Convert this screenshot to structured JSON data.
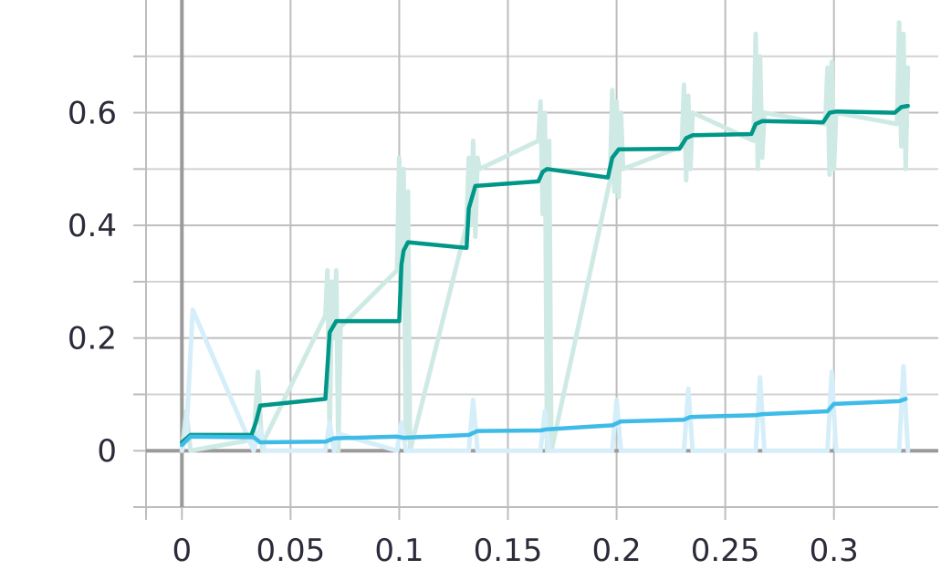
{
  "chart_data": {
    "type": "line",
    "title": "",
    "xlabel": "",
    "ylabel": "",
    "xlim": [
      -0.0165,
      0.348
    ],
    "ylim": [
      -0.1,
      0.8
    ],
    "x_ticks": [
      0,
      0.05,
      0.1,
      0.15,
      0.2,
      0.25,
      0.3
    ],
    "x_tick_labels": [
      "0",
      "0.05",
      "0.1",
      "0.15",
      "0.2",
      "0.25",
      "0.3"
    ],
    "y_ticks": [
      0,
      0.2,
      0.4,
      0.6
    ],
    "y_tick_labels": [
      "0",
      "0.2",
      "0.4",
      "0.6"
    ],
    "grid": true,
    "legend": "none",
    "colors": {
      "teal": "#009688",
      "teal_raw": "#cfeae5",
      "blue": "#3fbbe8",
      "blue_raw": "#d5eef9"
    },
    "series": [
      {
        "kind": "smoothed",
        "color": "#009688",
        "x": [
          0,
          0.004,
          0.032,
          0.034,
          0.036,
          0.066,
          0.068,
          0.071,
          0.1,
          0.101,
          0.102,
          0.104,
          0.131,
          0.132,
          0.135,
          0.164,
          0.166,
          0.168,
          0.196,
          0.198,
          0.201,
          0.229,
          0.232,
          0.235,
          0.262,
          0.264,
          0.267,
          0.295,
          0.298,
          0.301,
          0.328,
          0.331,
          0.334
        ],
        "y": [
          0.015,
          0.028,
          0.028,
          0.05,
          0.08,
          0.092,
          0.21,
          0.23,
          0.23,
          0.33,
          0.355,
          0.37,
          0.36,
          0.43,
          0.47,
          0.478,
          0.495,
          0.5,
          0.485,
          0.52,
          0.535,
          0.536,
          0.555,
          0.56,
          0.562,
          0.58,
          0.585,
          0.583,
          0.6,
          0.602,
          0.6,
          0.61,
          0.612
        ]
      },
      {
        "kind": "smoothed",
        "color": "#3fbbe8",
        "x": [
          0,
          0.004,
          0.033,
          0.036,
          0.066,
          0.07,
          0.099,
          0.102,
          0.132,
          0.136,
          0.165,
          0.168,
          0.198,
          0.202,
          0.231,
          0.234,
          0.264,
          0.267,
          0.297,
          0.3,
          0.33,
          0.333
        ],
        "y": [
          0.01,
          0.025,
          0.024,
          0.015,
          0.016,
          0.022,
          0.025,
          0.023,
          0.028,
          0.035,
          0.036,
          0.038,
          0.045,
          0.052,
          0.055,
          0.06,
          0.063,
          0.065,
          0.07,
          0.083,
          0.088,
          0.092
        ]
      },
      {
        "kind": "raw",
        "color": "#cfeae5",
        "x": [
          0,
          0.002,
          0.004,
          0.033,
          0.035,
          0.037,
          0.038,
          0.066,
          0.067,
          0.068,
          0.069,
          0.07,
          0.071,
          0.072,
          0.073,
          0.099,
          0.1,
          0.101,
          0.102,
          0.103,
          0.104,
          0.105,
          0.131,
          0.132,
          0.133,
          0.134,
          0.135,
          0.136,
          0.137,
          0.164,
          0.165,
          0.166,
          0.167,
          0.168,
          0.169,
          0.17,
          0.197,
          0.198,
          0.199,
          0.2,
          0.201,
          0.202,
          0.203,
          0.23,
          0.231,
          0.232,
          0.233,
          0.234,
          0.235,
          0.263,
          0.264,
          0.265,
          0.266,
          0.267,
          0.268,
          0.296,
          0.297,
          0.298,
          0.299,
          0.3,
          0.301,
          0.329,
          0.33,
          0.331,
          0.332,
          0.333,
          0.334
        ],
        "y": [
          0.0,
          0.07,
          0.0,
          0.02,
          0.14,
          0.0,
          0.02,
          0.24,
          0.32,
          0.02,
          0.3,
          0.2,
          0.32,
          0.0,
          0.22,
          0.32,
          0.52,
          0.28,
          0.5,
          0.02,
          0.46,
          0.0,
          0.4,
          0.52,
          0.4,
          0.55,
          0.38,
          0.52,
          0.5,
          0.55,
          0.62,
          0.42,
          0.6,
          0.0,
          0.55,
          0.0,
          0.48,
          0.64,
          0.46,
          0.62,
          0.45,
          0.6,
          0.5,
          0.54,
          0.65,
          0.48,
          0.63,
          0.5,
          0.6,
          0.55,
          0.74,
          0.5,
          0.7,
          0.52,
          0.6,
          0.58,
          0.68,
          0.49,
          0.69,
          0.5,
          0.6,
          0.58,
          0.76,
          0.54,
          0.74,
          0.5,
          0.68
        ]
      },
      {
        "kind": "raw",
        "color": "#d5eef9",
        "x": [
          0,
          0.002,
          0.005,
          0.033,
          0.036,
          0.038,
          0.066,
          0.068,
          0.07,
          0.072,
          0.099,
          0.101,
          0.103,
          0.132,
          0.134,
          0.136,
          0.165,
          0.167,
          0.169,
          0.198,
          0.2,
          0.202,
          0.231,
          0.233,
          0.235,
          0.264,
          0.266,
          0.268,
          0.297,
          0.299,
          0.301,
          0.33,
          0.332,
          0.334
        ],
        "y": [
          0.0,
          0.03,
          0.25,
          0.0,
          0.04,
          0.0,
          0.0,
          0.05,
          0.0,
          0.03,
          0.0,
          0.05,
          0.0,
          0.0,
          0.09,
          0.0,
          0.0,
          0.07,
          0.0,
          0.0,
          0.09,
          0.0,
          0.0,
          0.11,
          0.0,
          0.0,
          0.13,
          0.0,
          0.0,
          0.14,
          0.0,
          0.0,
          0.15,
          0.0
        ]
      }
    ]
  }
}
